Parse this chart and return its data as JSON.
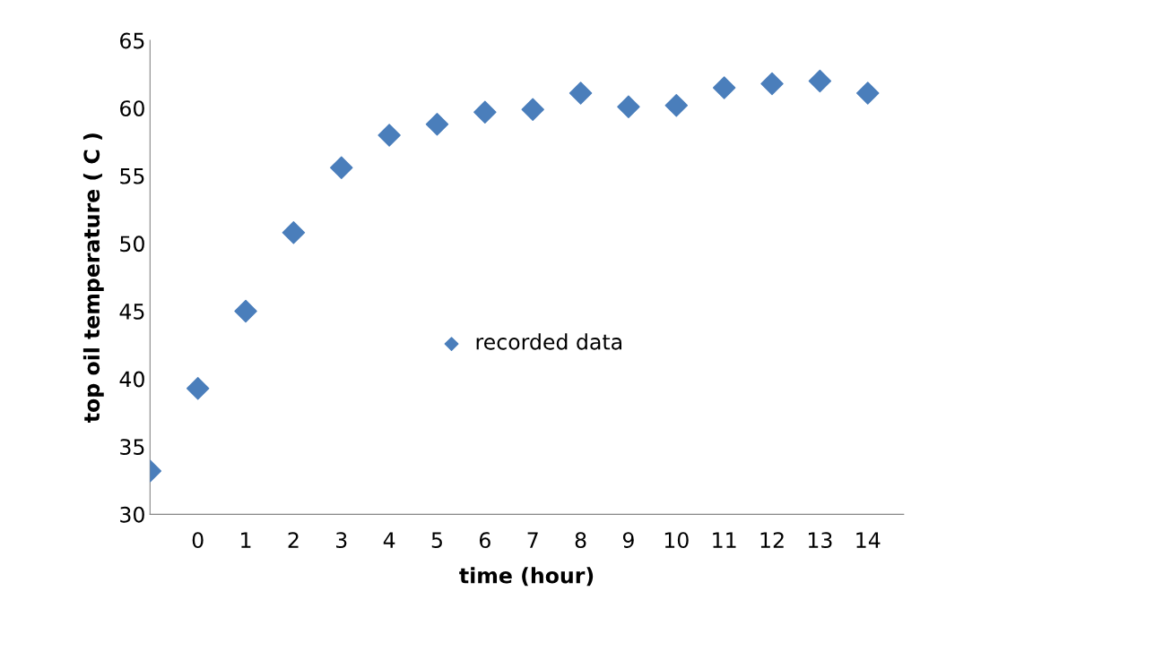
{
  "chart_data": {
    "type": "scatter",
    "xlabel": "time (hour)",
    "ylabel": "top oil temperature ( C )",
    "categories": [
      null,
      "0",
      "1",
      "2",
      "3",
      "4",
      "5",
      "6",
      "7",
      "8",
      "9",
      "10",
      "11",
      "12",
      "13",
      "14"
    ],
    "series": [
      {
        "name": "recorded data",
        "color": "#4a7ebb",
        "values": [
          33.2,
          39.3,
          45.0,
          50.8,
          55.6,
          58.0,
          58.8,
          59.7,
          59.9,
          61.1,
          60.1,
          60.2,
          61.5,
          61.8,
          62.0,
          61.1
        ]
      }
    ],
    "ylim": [
      30,
      65
    ],
    "yticks": [
      30,
      35,
      40,
      45,
      50,
      55,
      60,
      65
    ],
    "marker": "diamond",
    "legend": "center",
    "grid": false
  }
}
